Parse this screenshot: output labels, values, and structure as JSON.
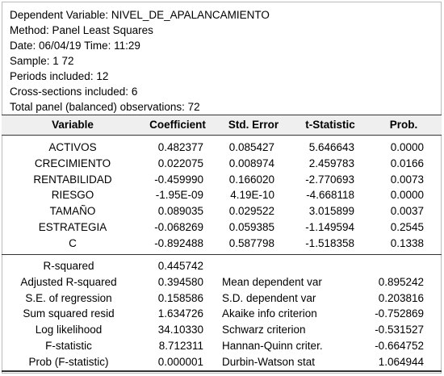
{
  "header": {
    "lines": [
      "Dependent Variable: NIVEL_DE_APALANCAMIENTO",
      "Method: Panel Least Squares",
      "Date: 06/04/19   Time: 11:29",
      "Sample: 1 72",
      "Periods included: 12",
      "Cross-sections included: 6",
      "Total panel (balanced) observations: 72"
    ]
  },
  "columns": [
    "Variable",
    "Coefficient",
    "Std. Error",
    "t-Statistic",
    "Prob."
  ],
  "rows": [
    {
      "variable": "ACTIVOS",
      "coef": "0.482377",
      "se": "0.085427",
      "t": "5.646643",
      "p": "0.0000"
    },
    {
      "variable": "CRECIMIENTO",
      "coef": "0.022075",
      "se": "0.008974",
      "t": "2.459783",
      "p": "0.0166"
    },
    {
      "variable": "RENTABILIDAD",
      "coef": "-0.459990",
      "se": "0.166020",
      "t": "-2.770693",
      "p": "0.0073"
    },
    {
      "variable": "RIESGO",
      "coef": "-1.95E-09",
      "se": "4.19E-10",
      "t": "-4.668118",
      "p": "0.0000"
    },
    {
      "variable": "TAMAÑO",
      "coef": "0.089035",
      "se": "0.029522",
      "t": "3.015899",
      "p": "0.0037"
    },
    {
      "variable": "ESTRATEGIA",
      "coef": "-0.068269",
      "se": "0.059385",
      "t": "-1.149594",
      "p": "0.2545"
    },
    {
      "variable": "C",
      "coef": "-0.892488",
      "se": "0.587798",
      "t": "-1.518358",
      "p": "0.1338"
    }
  ],
  "stats_left": [
    {
      "label": "R-squared",
      "value": "0.445742"
    },
    {
      "label": "Adjusted R-squared",
      "value": "0.394580"
    },
    {
      "label": "S.E. of regression",
      "value": "0.158586"
    },
    {
      "label": "Sum squared resid",
      "value": "1.634726"
    },
    {
      "label": "Log likelihood",
      "value": "34.10330"
    },
    {
      "label": "F-statistic",
      "value": "8.712311"
    },
    {
      "label": "Prob (F-statistic)",
      "value": "0.000001"
    }
  ],
  "stats_right": [
    {
      "label": "",
      "value": ""
    },
    {
      "label": "Mean dependent var",
      "value": "0.895242"
    },
    {
      "label": "S.D. dependent var",
      "value": "0.203816"
    },
    {
      "label": "Akaike info criterion",
      "value": "-0.752869"
    },
    {
      "label": "Schwarz criterion",
      "value": "-0.531527"
    },
    {
      "label": "Hannan-Quinn criter.",
      "value": "-0.664752"
    },
    {
      "label": "Durbin-Watson stat",
      "value": "1.064944"
    }
  ]
}
